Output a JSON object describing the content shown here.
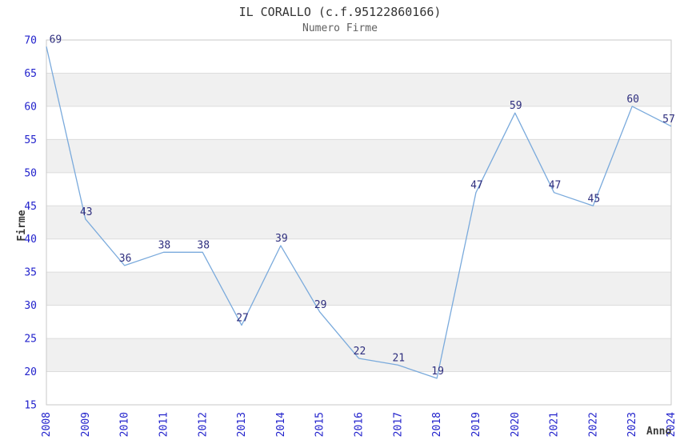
{
  "header": {
    "title": "IL CORALLO (c.f.95122860166)",
    "subtitle": "Numero Firme"
  },
  "chart_data": {
    "type": "line",
    "title": "IL CORALLO (c.f.95122860166)",
    "subtitle": "Numero Firme",
    "xlabel": "Anno",
    "ylabel": "Firme",
    "categories": [
      "2008",
      "2009",
      "2010",
      "2011",
      "2012",
      "2013",
      "2014",
      "2015",
      "2016",
      "2017",
      "2018",
      "2019",
      "2020",
      "2021",
      "2022",
      "2023",
      "2024"
    ],
    "values": [
      69,
      43,
      36,
      38,
      38,
      27,
      39,
      29,
      22,
      21,
      19,
      47,
      59,
      47,
      45,
      60,
      57
    ],
    "ylim": [
      15,
      70
    ],
    "ytick_step": 5,
    "yticks": [
      15,
      20,
      25,
      30,
      35,
      40,
      45,
      50,
      55,
      60,
      65,
      70
    ],
    "grid": true,
    "legend": "none",
    "colors": {
      "line": "#7aaadc",
      "tick_label": "#2222cc",
      "data_label": "#2e2e7e",
      "band": "#f0f0f0",
      "gridline": "#dcdcdc",
      "border": "#c9c9c9",
      "title": "#333333",
      "subtitle": "#606060",
      "axis_title": "#3a3a3a"
    }
  }
}
